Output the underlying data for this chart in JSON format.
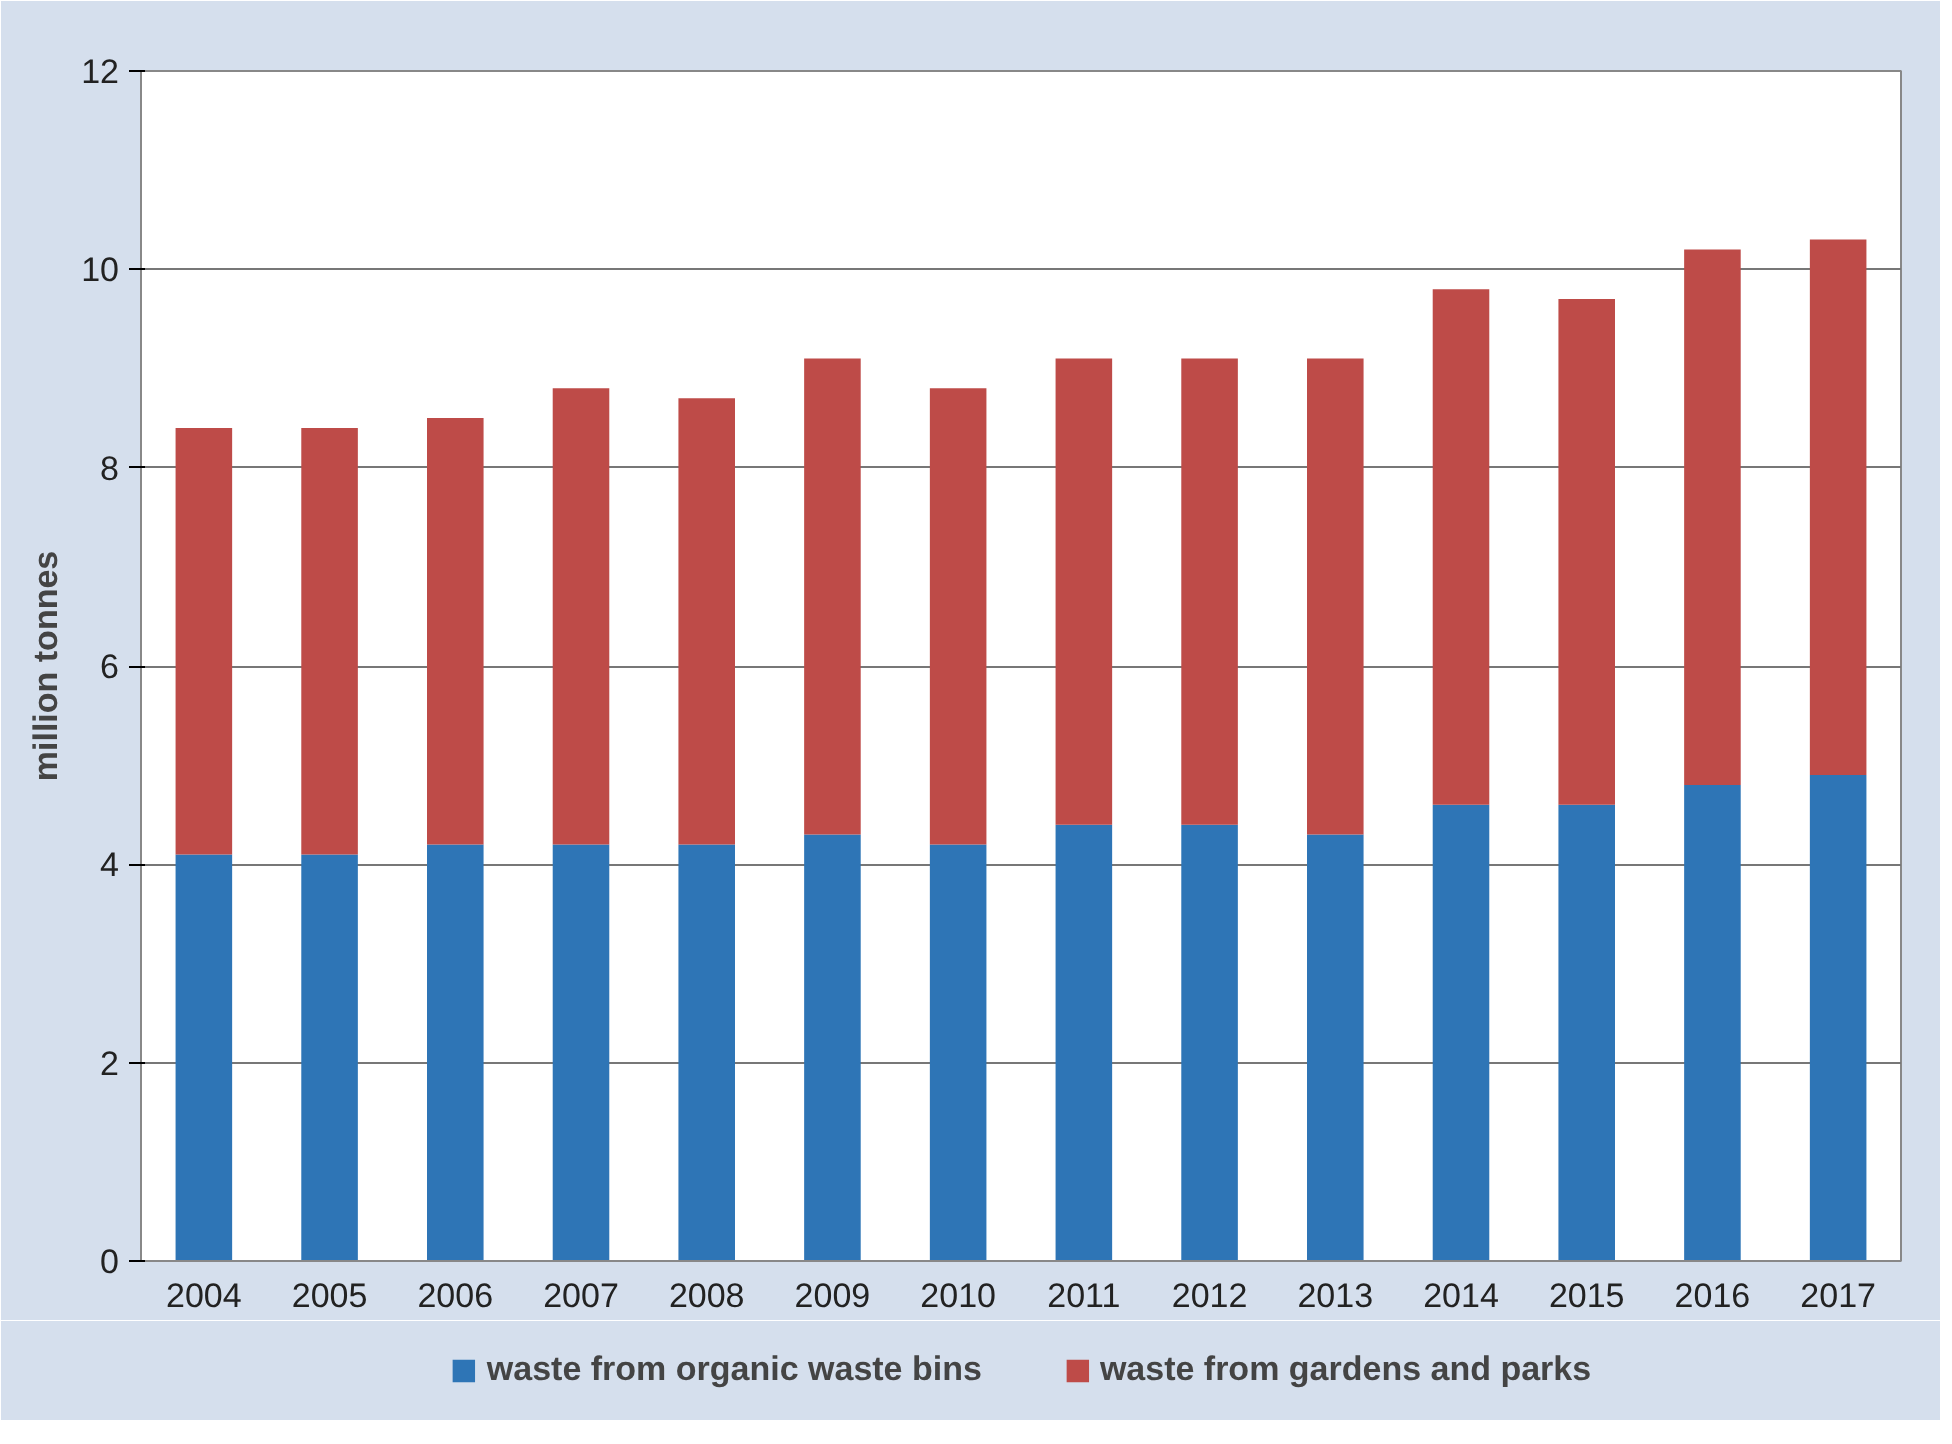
{
  "chart_data": {
    "type": "bar",
    "stacked": true,
    "ylabel": "million tonnes",
    "categories": [
      "2004",
      "2005",
      "2006",
      "2007",
      "2008",
      "2009",
      "2010",
      "2011",
      "2012",
      "2013",
      "2014",
      "2015",
      "2016",
      "2017"
    ],
    "series": [
      {
        "name": "waste from organic waste bins",
        "color": "#2e75b6",
        "values": [
          4.1,
          4.1,
          4.2,
          4.2,
          4.2,
          4.3,
          4.2,
          4.4,
          4.4,
          4.3,
          4.6,
          4.6,
          4.8,
          4.9
        ]
      },
      {
        "name": "waste from gardens and parks",
        "color": "#be4b48",
        "values": [
          4.3,
          4.3,
          4.3,
          4.6,
          4.5,
          4.8,
          4.6,
          4.7,
          4.7,
          4.8,
          5.2,
          5.1,
          5.4,
          5.4
        ]
      }
    ],
    "ylim": [
      0,
      12
    ],
    "yticks": [
      0,
      2,
      4,
      6,
      8,
      10,
      12
    ],
    "grid": "y",
    "legend": "bottom"
  }
}
